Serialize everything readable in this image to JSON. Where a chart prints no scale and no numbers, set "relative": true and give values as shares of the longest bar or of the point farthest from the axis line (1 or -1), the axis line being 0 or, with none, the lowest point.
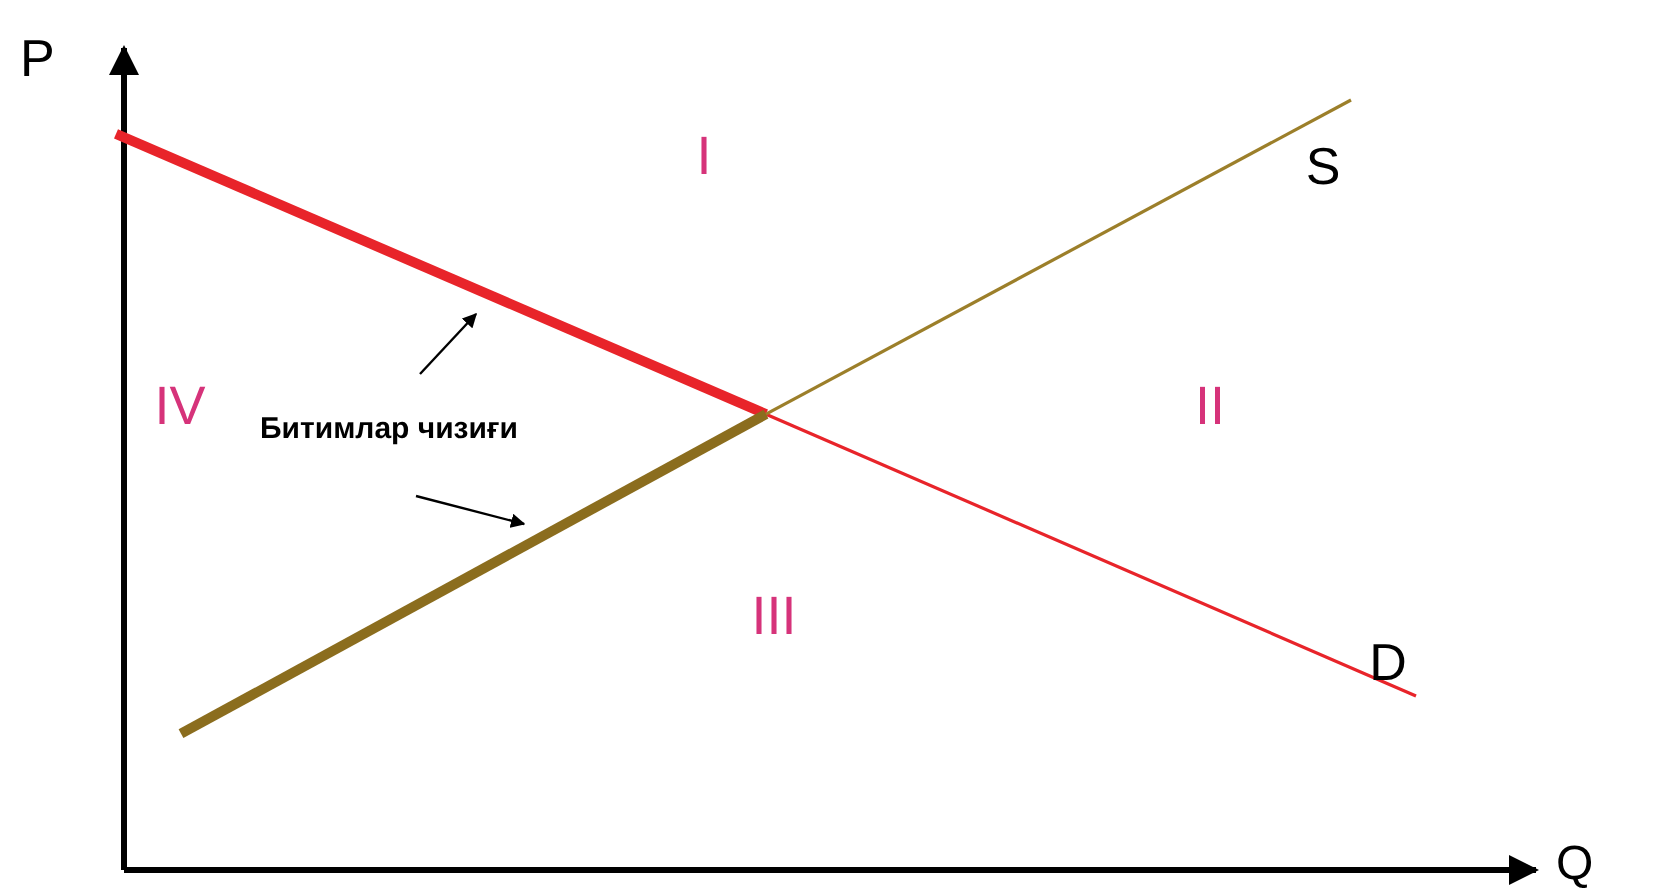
{
  "chart_data": {
    "type": "line",
    "relative": true,
    "xlabel": "Q",
    "ylabel": "P",
    "categories": [
      null,
      null,
      null,
      null,
      null,
      null,
      null,
      null,
      null,
      null,
      null,
      null,
      null,
      null,
      null,
      null,
      null,
      null,
      null,
      null,
      null
    ],
    "series": [
      {
        "color": "#e8242a",
        "values": [
          0.956,
          null,
          null,
          null,
          null,
          null,
          null,
          null,
          null,
          null,
          0.592,
          null,
          null,
          null,
          null,
          null,
          null,
          null,
          null,
          null,
          null
        ]
      },
      {
        "name": "D",
        "color": "#e8242a",
        "values": [
          null,
          null,
          null,
          null,
          null,
          null,
          null,
          null,
          null,
          null,
          0.592,
          null,
          null,
          null,
          null,
          null,
          null,
          null,
          null,
          null,
          0.226
        ]
      },
      {
        "color": "#8b6d1e",
        "values": [
          null,
          0.177,
          null,
          null,
          null,
          null,
          null,
          null,
          null,
          null,
          0.592,
          null,
          null,
          null,
          null,
          null,
          null,
          null,
          null,
          null,
          null
        ]
      },
      {
        "name": "S",
        "color": "#9c7f2a",
        "values": [
          null,
          null,
          null,
          null,
          null,
          null,
          null,
          null,
          null,
          null,
          0.592,
          null,
          null,
          null,
          null,
          null,
          null,
          null,
          null,
          1,
          null
        ]
      }
    ],
    "annotations": [
      "I",
      "II",
      "III",
      "IV",
      "Битимлар чизиғи"
    ],
    "marker": "none",
    "line_style": "solid"
  }
}
